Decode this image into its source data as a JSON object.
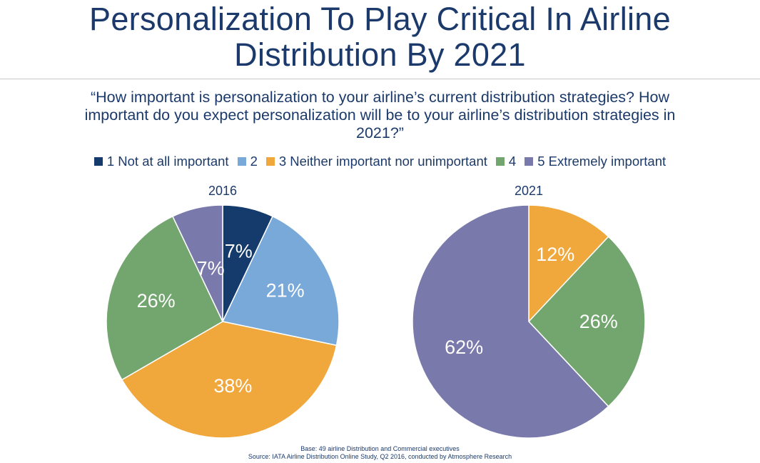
{
  "slide": {
    "title_line1": "Personalization To Play Critical In Airline",
    "title_line2": "Distribution By 2021",
    "question_line1": "“How important is personalization to your airline’s current distribution strategies? How",
    "question_line2": "important do you expect personalization will be to your airline’s distribution strategies in",
    "question_line3": "2021?”"
  },
  "legend": [
    {
      "label": "1 Not at all important",
      "color": "#143b6c"
    },
    {
      "label": "2",
      "color": "#78a9d9"
    },
    {
      "label": "3 Neither important nor unimportant",
      "color": "#f0a73b"
    },
    {
      "label": "4",
      "color": "#72a66e"
    },
    {
      "label": "5 Extremely important",
      "color": "#7a79ab"
    }
  ],
  "chart_data": [
    {
      "type": "pie",
      "title": "2016",
      "categories": [
        "1 Not at all important",
        "2",
        "3 Neither important nor unimportant",
        "4",
        "5 Extremely important"
      ],
      "values": [
        7,
        21,
        38,
        26,
        7
      ],
      "labels": [
        "7%",
        "21%",
        "38%",
        "26%",
        "7%"
      ],
      "colors": [
        "#143b6c",
        "#78a9d9",
        "#f0a73b",
        "#72a66e",
        "#7a79ab"
      ],
      "legend_position": "top"
    },
    {
      "type": "pie",
      "title": "2021",
      "categories": [
        "3 Neither important nor unimportant",
        "4",
        "5 Extremely important"
      ],
      "values": [
        12,
        26,
        62
      ],
      "labels": [
        "12%",
        "26%",
        "62%"
      ],
      "colors": [
        "#f0a73b",
        "#72a66e",
        "#7a79ab"
      ],
      "legend_position": "top"
    }
  ],
  "footnote": {
    "base": "Base: 49 airline Distribution and Commercial executives",
    "source": "Source: IATA Airline Distribution Online Study, Q2 2016, conducted by Atmosphere Research"
  }
}
